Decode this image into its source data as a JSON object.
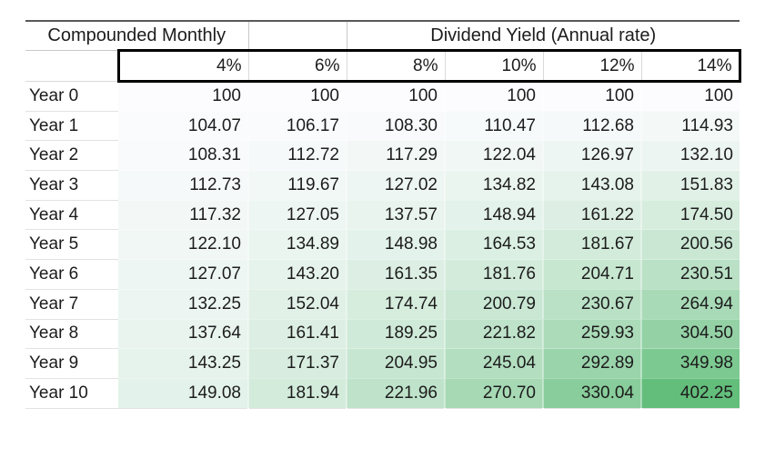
{
  "chart_data": {
    "type": "heatmap",
    "corner_label": "Compounded Monthly",
    "column_group_label": "Dividend Yield (Annual rate)",
    "columns": [
      "4%",
      "6%",
      "8%",
      "10%",
      "12%",
      "14%"
    ],
    "rows": [
      "Year 0",
      "Year 1",
      "Year 2",
      "Year 3",
      "Year 4",
      "Year 5",
      "Year 6",
      "Year 7",
      "Year 8",
      "Year 9",
      "Year 10"
    ],
    "values": [
      [
        "100",
        "100",
        "100",
        "100",
        "100",
        "100"
      ],
      [
        "104.07",
        "106.17",
        "108.30",
        "110.47",
        "112.68",
        "114.93"
      ],
      [
        "108.31",
        "112.72",
        "117.29",
        "122.04",
        "126.97",
        "132.10"
      ],
      [
        "112.73",
        "119.67",
        "127.02",
        "134.82",
        "143.08",
        "151.83"
      ],
      [
        "117.32",
        "127.05",
        "137.57",
        "148.94",
        "161.22",
        "174.50"
      ],
      [
        "122.10",
        "134.89",
        "148.98",
        "164.53",
        "181.67",
        "200.56"
      ],
      [
        "127.07",
        "143.20",
        "161.35",
        "181.76",
        "204.71",
        "230.51"
      ],
      [
        "132.25",
        "152.04",
        "174.74",
        "200.79",
        "230.67",
        "264.94"
      ],
      [
        "137.64",
        "161.41",
        "189.25",
        "221.82",
        "259.93",
        "304.50"
      ],
      [
        "143.25",
        "171.37",
        "204.95",
        "245.04",
        "292.89",
        "349.98"
      ],
      [
        "149.08",
        "181.94",
        "221.96",
        "270.70",
        "330.04",
        "402.25"
      ]
    ],
    "color_scale": {
      "min_value": 100,
      "max_value": 402.25,
      "min_color": "#FCFCFF",
      "max_color": "#63BE7B"
    },
    "layout": {
      "legend": "none",
      "grid": "spreadsheet",
      "value_alignment": "right",
      "label_alignment": "left"
    }
  }
}
